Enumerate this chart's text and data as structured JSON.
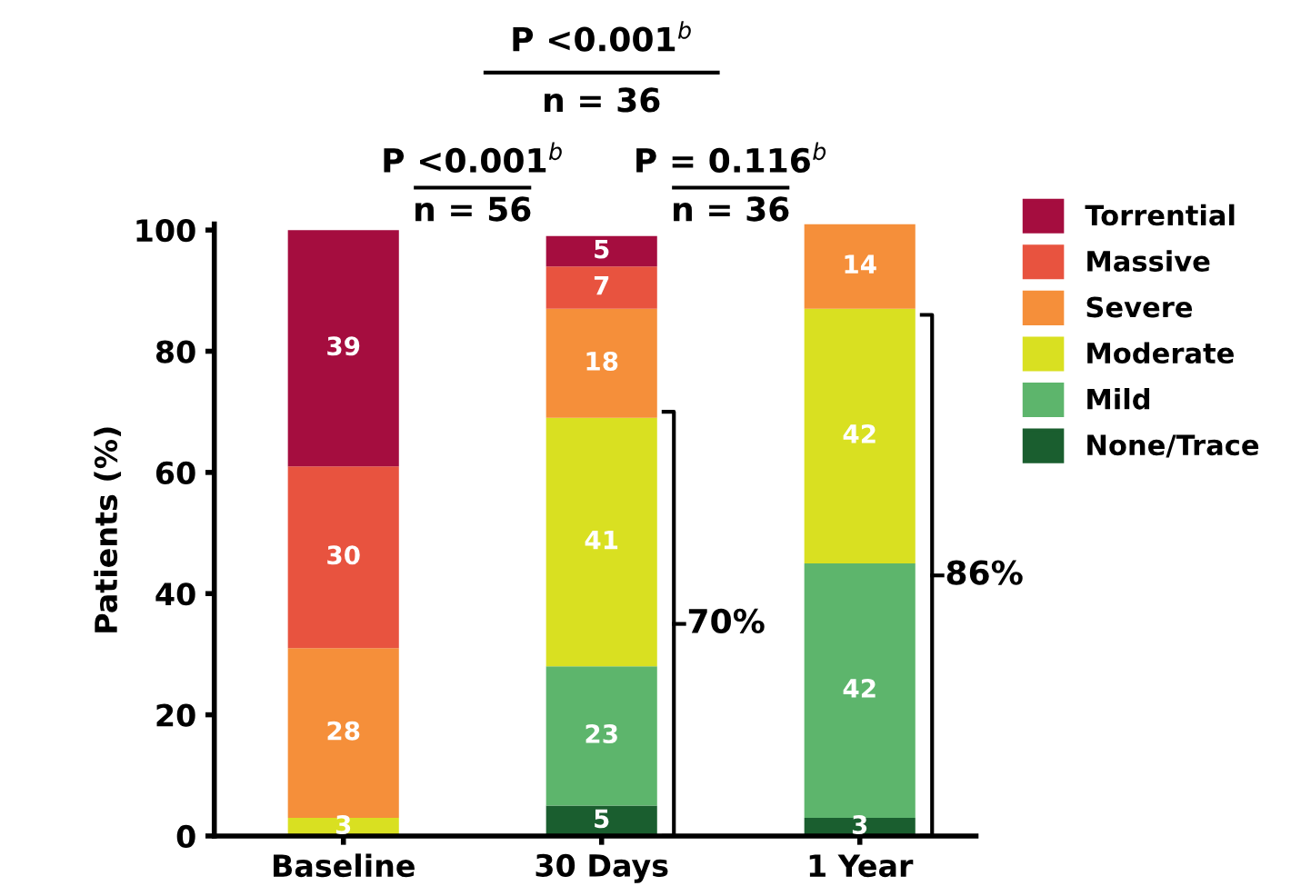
{
  "chart_data": {
    "type": "bar",
    "stacked": true,
    "ylabel": "Patients (%)",
    "categories": [
      "Baseline",
      "30 Days",
      "1 Year"
    ],
    "series": [
      {
        "name": "None/Trace",
        "color": "#1a5e2f",
        "values": [
          null,
          5,
          3
        ]
      },
      {
        "name": "Mild",
        "color": "#5db56c",
        "values": [
          null,
          23,
          42
        ]
      },
      {
        "name": "Moderate",
        "color": "#d9e021",
        "values": [
          3,
          41,
          42
        ]
      },
      {
        "name": "Severe",
        "color": "#f58f3a",
        "values": [
          28,
          18,
          14
        ]
      },
      {
        "name": "Massive",
        "color": "#e8533f",
        "values": [
          30,
          7,
          null
        ]
      },
      {
        "name": "Torrential",
        "color": "#a50d3f",
        "values": [
          39,
          5,
          null
        ]
      }
    ],
    "ylim": [
      0,
      101
    ],
    "yticks": [
      0,
      20,
      40,
      60,
      80,
      100
    ],
    "data_labels": true,
    "grid": false,
    "legend": "right",
    "annotations": [
      "P <0.001$^{b}$",
      "n = 36",
      "P <0.001$^{b}$",
      "n = 56",
      "P = 0.116$^{b}$",
      "n = 36",
      "70%",
      "86%"
    ]
  }
}
